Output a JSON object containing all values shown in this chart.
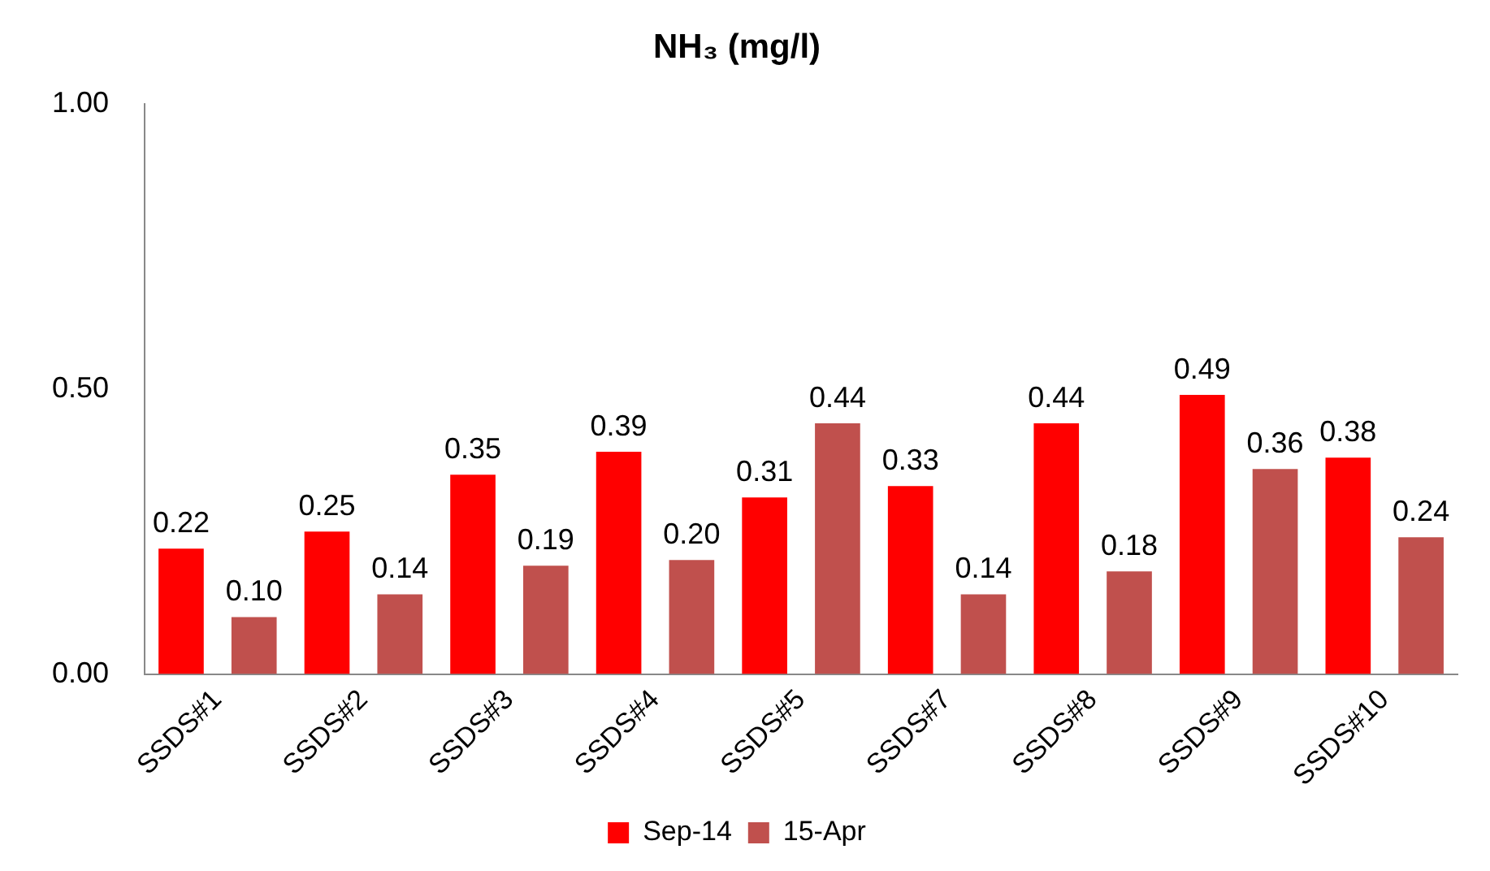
{
  "chart_data": {
    "type": "bar",
    "title": "NH₃ (mg/l)",
    "categories": [
      "SSDS#1",
      "SSDS#2",
      "SSDS#3",
      "SSDS#4",
      "SSDS#5",
      "SSDS#7",
      "SSDS#8",
      "SSDS#9",
      "SSDS#10"
    ],
    "series": [
      {
        "name": "Sep-14",
        "color": "#ff0000",
        "values": [
          0.22,
          0.25,
          0.35,
          0.39,
          0.31,
          0.33,
          0.44,
          0.49,
          0.38
        ],
        "value_labels": [
          "0.22",
          "0.25",
          "0.35",
          "0.39",
          "0.31",
          "0.33",
          "0.44",
          "0.49",
          "0.38"
        ]
      },
      {
        "name": "15-Apr",
        "color": "#c0504d",
        "values": [
          0.1,
          0.14,
          0.19,
          0.2,
          0.44,
          0.14,
          0.18,
          0.36,
          0.24
        ],
        "value_labels": [
          "0.10",
          "0.14",
          "0.19",
          "0.20",
          "0.44",
          "0.14",
          "0.18",
          "0.36",
          "0.24"
        ]
      }
    ],
    "ylim": [
      0,
      1
    ],
    "yticks": [
      {
        "value": 0,
        "label": "0.00"
      },
      {
        "value": 0.5,
        "label": "0.50"
      },
      {
        "value": 1,
        "label": "1.00"
      }
    ],
    "grid": false,
    "legend": "bottom"
  }
}
